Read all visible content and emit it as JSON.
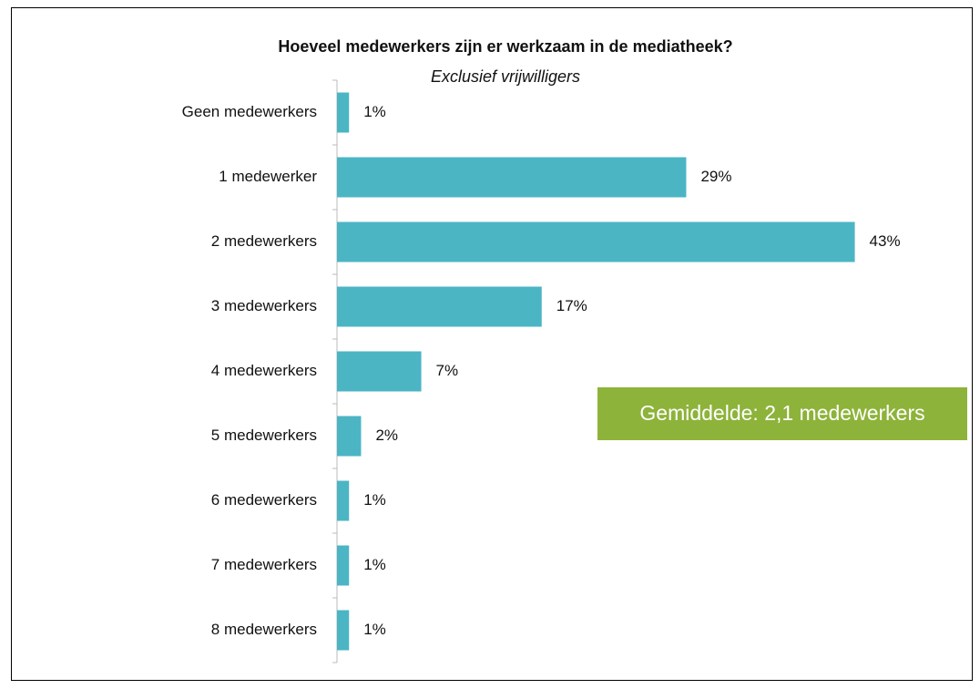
{
  "chart_data": {
    "type": "bar",
    "orientation": "horizontal",
    "title": "Hoeveel medewerkers zijn er werkzaam in de mediatheek?",
    "subtitle": "Exclusief vrijwilligers",
    "categories": [
      "Geen medewerkers",
      "1 medewerker",
      "2 medewerkers",
      "3 medewerkers",
      "4 medewerkers",
      "5 medewerkers",
      "6 medewerkers",
      "7 medewerkers",
      "8 medewerkers"
    ],
    "values": [
      1,
      29,
      43,
      17,
      7,
      2,
      1,
      1,
      1
    ],
    "value_labels": [
      "1%",
      "29%",
      "43%",
      "17%",
      "7%",
      "2%",
      "1%",
      "1%",
      "1%"
    ],
    "color": "#4bb5c4",
    "xlim": [
      0,
      45
    ],
    "annotation": "Gemiddelde: 2,1 medewerkers",
    "annotation_color": "#8db33a"
  }
}
